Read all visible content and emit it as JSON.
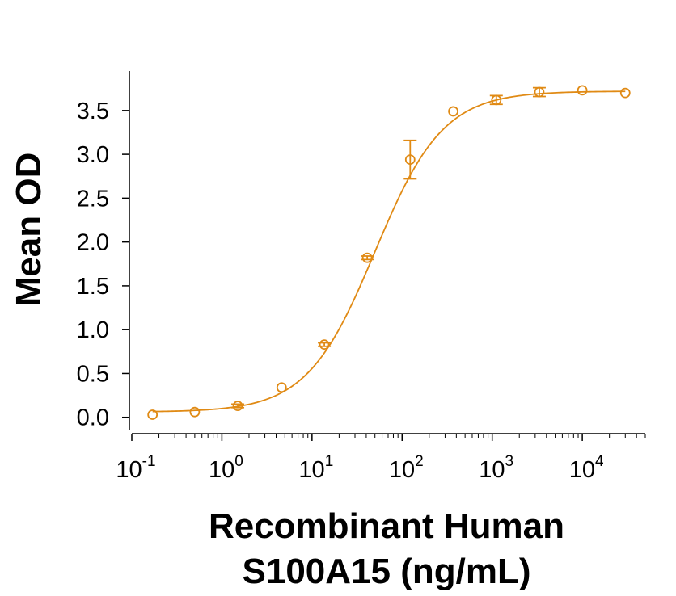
{
  "chart_data": {
    "type": "scatter",
    "title": "",
    "xlabel_lines": [
      "Recombinant Human",
      "S100A15 (ng/mL)"
    ],
    "ylabel": "Mean OD",
    "x_scale": "log",
    "xlim": [
      0.1,
      50000
    ],
    "ylim": [
      -0.15,
      3.95
    ],
    "x_ticks": [
      {
        "base": "10",
        "exp": "-1",
        "value": 0.1
      },
      {
        "base": "10",
        "exp": "0",
        "value": 1
      },
      {
        "base": "10",
        "exp": "1",
        "value": 10
      },
      {
        "base": "10",
        "exp": "2",
        "value": 100
      },
      {
        "base": "10",
        "exp": "3",
        "value": 1000
      },
      {
        "base": "10",
        "exp": "4",
        "value": 10000
      }
    ],
    "y_ticks": [
      {
        "label": "0.0",
        "value": 0.0
      },
      {
        "label": "0.5",
        "value": 0.5
      },
      {
        "label": "1.0",
        "value": 1.0
      },
      {
        "label": "1.5",
        "value": 1.5
      },
      {
        "label": "2.0",
        "value": 2.0
      },
      {
        "label": "2.5",
        "value": 2.5
      },
      {
        "label": "3.0",
        "value": 3.0
      },
      {
        "label": "3.5",
        "value": 3.5
      }
    ],
    "grid": false,
    "legend": "none",
    "color": "#E08A14",
    "series": [
      {
        "x": [
          0.17,
          0.5,
          1.5,
          4.6,
          13.7,
          41,
          123,
          370,
          1111,
          3333,
          10000,
          30000
        ],
        "y": [
          0.03,
          0.06,
          0.13,
          0.34,
          0.83,
          1.82,
          2.94,
          3.49,
          3.62,
          3.71,
          3.73,
          3.7
        ],
        "err": [
          0.0,
          0.0,
          0.02,
          0.0,
          0.02,
          0.02,
          0.22,
          0.0,
          0.05,
          0.05,
          0.0,
          0.0
        ]
      }
    ],
    "fit": {
      "model": "4PL",
      "bottom": 0.06,
      "top": 3.72,
      "ec50": 50,
      "hill": 1.15
    }
  }
}
